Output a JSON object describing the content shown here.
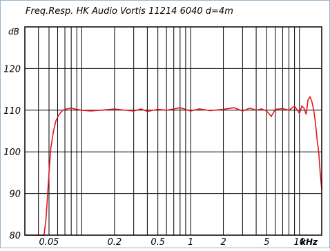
{
  "chart_data": {
    "type": "line",
    "title": "Freq.Resp.  HK Audio Vortis 11214  6040  d=4m",
    "ylabel": "dB",
    "xlabel_unit": "kHz",
    "x_scale": "log",
    "xlim": [
      0.03,
      16
    ],
    "ylim": [
      80,
      130
    ],
    "x_ticks": [
      {
        "value": 0.05,
        "label": "0.05"
      },
      {
        "value": 0.2,
        "label": "0.2"
      },
      {
        "value": 0.5,
        "label": "0.5"
      },
      {
        "value": 1,
        "label": "1"
      },
      {
        "value": 2,
        "label": "2"
      },
      {
        "value": 5,
        "label": "5"
      },
      {
        "value": 10,
        "label": "10"
      }
    ],
    "y_ticks": [
      {
        "value": 120,
        "label": "120"
      },
      {
        "value": 110,
        "label": "110"
      },
      {
        "value": 100,
        "label": "100"
      },
      {
        "value": 90,
        "label": "90"
      },
      {
        "value": 80,
        "label": "80"
      }
    ],
    "grid": true,
    "series_color": "#e8141c",
    "series": [
      {
        "x": [
          0.03,
          0.045,
          0.047,
          0.05,
          0.052,
          0.055,
          0.058,
          0.062,
          0.067,
          0.072,
          0.08,
          0.09,
          0.1,
          0.12,
          0.15,
          0.2,
          0.25,
          0.3,
          0.35,
          0.4,
          0.5,
          0.6,
          0.7,
          0.8,
          1.0,
          1.2,
          1.5,
          2.0,
          2.5,
          3.0,
          3.5,
          4.0,
          4.5,
          5.0,
          5.5,
          6.0,
          7.0,
          8.0,
          9.0,
          10.0,
          10.5,
          11.0,
          11.5,
          12.0,
          12.5,
          13.0,
          13.5,
          14.0,
          14.5,
          15.0,
          15.5,
          16.0
        ],
        "y": [
          80,
          80,
          84,
          95,
          101,
          105,
          107.5,
          109,
          110,
          110.3,
          110.5,
          110.2,
          110.0,
          109.8,
          110.0,
          110.3,
          110.0,
          109.8,
          110.3,
          109.7,
          110.2,
          110.0,
          110.3,
          110.6,
          109.8,
          110.3,
          109.9,
          110.2,
          110.6,
          109.8,
          110.5,
          110.0,
          110.3,
          109.8,
          108.5,
          110.2,
          110.4,
          110.0,
          111.0,
          109.2,
          111.0,
          110.5,
          109.0,
          112.5,
          113.2,
          112.0,
          110.0,
          107.0,
          103.0,
          100.0,
          95.0,
          91.0
        ]
      }
    ]
  }
}
